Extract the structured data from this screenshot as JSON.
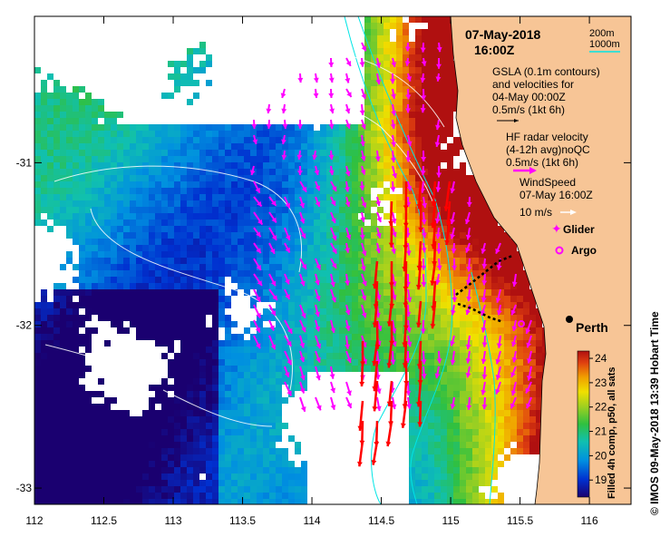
{
  "title": {
    "date": "07-May-2018",
    "time": "16:00Z"
  },
  "depth_legend": {
    "shallow": "200m",
    "deep": "1000m"
  },
  "gsla": {
    "line1": "GSLA (0.1m contours)",
    "line2": "and velocities for",
    "line3": "04-May 00:00Z",
    "scale": "0.5m/s (1kt 6h)"
  },
  "hf_radar": {
    "line1": "HF radar velocity",
    "line2": "(4-12h avg)noQC",
    "scale": "0.5m/s (1kt 6h)"
  },
  "wind": {
    "line1": "WindSpeed",
    "line2": "07-May 16:00Z",
    "scale": "10 m/s"
  },
  "markers": {
    "glider": "Glider",
    "argo": "Argo"
  },
  "city": "Perth",
  "side_credit": "© IMOS 09-May-2018 13:39 Hobart Time",
  "colorbar": {
    "label": "Filled 4h comp, p50, all sats",
    "ticks": [
      "24",
      "23",
      "22",
      "21",
      "20",
      "19"
    ],
    "min": 18.3,
    "max": 24.3
  },
  "axes": {
    "x_ticks": [
      "112",
      "112.5",
      "113",
      "113.5",
      "114",
      "114.5",
      "115",
      "115.5",
      "116"
    ],
    "y_ticks": [
      "-31",
      "-32",
      "-33"
    ],
    "xlim": [
      112,
      116.3
    ],
    "ylim": [
      -33.1,
      -30.1
    ]
  },
  "colors": {
    "land": "#f7c596",
    "frame": "#000000",
    "radar_arrow": "#ff00ff",
    "current_arrow": "#ff0000",
    "bathy": "#00e5e5",
    "glider": "#000000"
  }
}
